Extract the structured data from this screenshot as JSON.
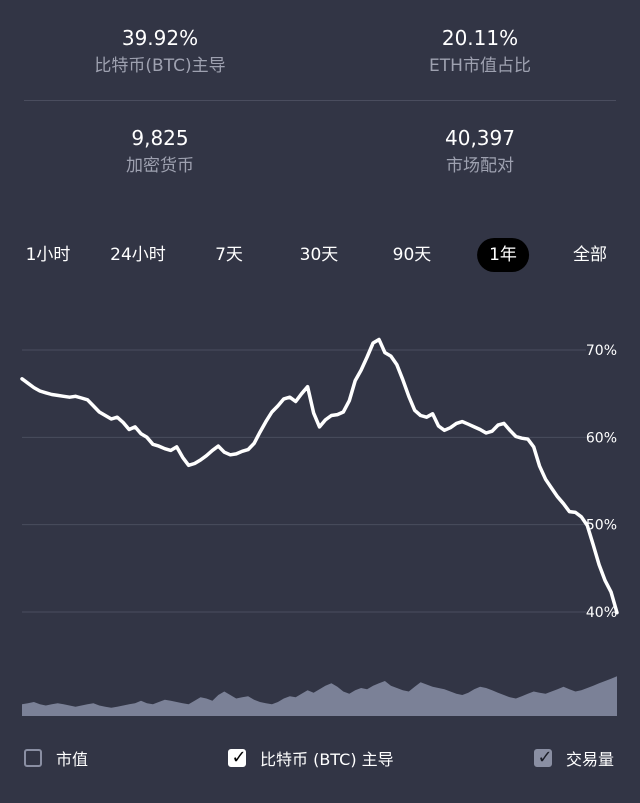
{
  "stats": {
    "btc_dominance": {
      "value": "39.92%",
      "label": "比特币(BTC)主导"
    },
    "eth_share": {
      "value": "20.11%",
      "label": "ETH市值占比"
    },
    "cryptocurrencies": {
      "value": "9,825",
      "label": "加密货币"
    },
    "market_pairs": {
      "value": "40,397",
      "label": "市场配对"
    }
  },
  "ranges": [
    {
      "label": "1小时",
      "active": false
    },
    {
      "label": "24小时",
      "active": false
    },
    {
      "label": "7天",
      "active": false
    },
    {
      "label": "30天",
      "active": false
    },
    {
      "label": "90天",
      "active": false
    },
    {
      "label": "1年",
      "active": true
    },
    {
      "label": "全部",
      "active": false
    }
  ],
  "colors": {
    "background": "#323545",
    "line": "#ffffff",
    "volume": "#7b8197",
    "grid": "#4a4d5e"
  },
  "chart_data": {
    "type": "line",
    "y_ticks": [
      "70%",
      "60%",
      "50%",
      "40%"
    ],
    "ylim": [
      40,
      70
    ],
    "x_range": "1年",
    "series": [
      {
        "name": "比特币 (BTC) 主导",
        "values": [
          66.7,
          66.2,
          65.7,
          65.3,
          65.1,
          64.9,
          64.8,
          64.7,
          64.6,
          64.7,
          64.5,
          64.3,
          63.6,
          62.9,
          62.5,
          62.1,
          62.3,
          61.7,
          60.9,
          61.2,
          60.4,
          60.0,
          59.2,
          59.0,
          58.7,
          58.5,
          58.9,
          57.7,
          56.8,
          57.0,
          57.4,
          57.9,
          58.5,
          59.0,
          58.3,
          58.0,
          58.1,
          58.4,
          58.6,
          59.3,
          60.6,
          61.8,
          62.9,
          63.6,
          64.4,
          64.6,
          64.1,
          65.0,
          65.8,
          62.8,
          61.2,
          62.0,
          62.5,
          62.6,
          62.9,
          64.2,
          66.5,
          67.7,
          69.2,
          70.8,
          71.2,
          69.7,
          69.3,
          68.3,
          66.6,
          64.7,
          63.1,
          62.5,
          62.3,
          62.7,
          61.3,
          60.8,
          61.1,
          61.6,
          61.8,
          61.5,
          61.2,
          60.9,
          60.5,
          60.7,
          61.4,
          61.6,
          60.8,
          60.1,
          59.9,
          59.8,
          58.9,
          56.7,
          55.2,
          54.2,
          53.2,
          52.4,
          51.5,
          51.4,
          50.9,
          49.9,
          47.7,
          45.4,
          43.6,
          42.3,
          39.92
        ]
      }
    ],
    "volume": [
      1.0,
      1.1,
      1.2,
      1.0,
      0.9,
      1.0,
      1.1,
      1.0,
      0.9,
      0.8,
      0.9,
      1.0,
      1.1,
      0.9,
      0.8,
      0.7,
      0.8,
      0.9,
      1.0,
      1.1,
      1.3,
      1.1,
      1.0,
      1.2,
      1.4,
      1.3,
      1.2,
      1.1,
      1.0,
      1.3,
      1.6,
      1.5,
      1.3,
      1.8,
      2.1,
      1.8,
      1.5,
      1.6,
      1.7,
      1.4,
      1.2,
      1.1,
      1.0,
      1.2,
      1.5,
      1.7,
      1.6,
      1.9,
      2.2,
      2.0,
      2.3,
      2.6,
      2.8,
      2.5,
      2.1,
      1.9,
      2.2,
      2.4,
      2.3,
      2.6,
      2.8,
      3.0,
      2.6,
      2.4,
      2.2,
      2.1,
      2.5,
      2.9,
      2.7,
      2.5,
      2.4,
      2.3,
      2.1,
      1.9,
      1.8,
      2.0,
      2.3,
      2.5,
      2.4,
      2.2,
      2.0,
      1.8,
      1.6,
      1.5,
      1.7,
      1.9,
      2.1,
      2.0,
      1.9,
      2.1,
      2.3,
      2.5,
      2.3,
      2.1,
      2.2,
      2.4,
      2.6,
      2.8,
      3.0,
      3.2,
      3.4
    ]
  },
  "legend": [
    {
      "label": "市值",
      "checked": false
    },
    {
      "label": "比特币 (BTC) 主导",
      "checked": true
    },
    {
      "label": "交易量",
      "checked": true
    }
  ]
}
